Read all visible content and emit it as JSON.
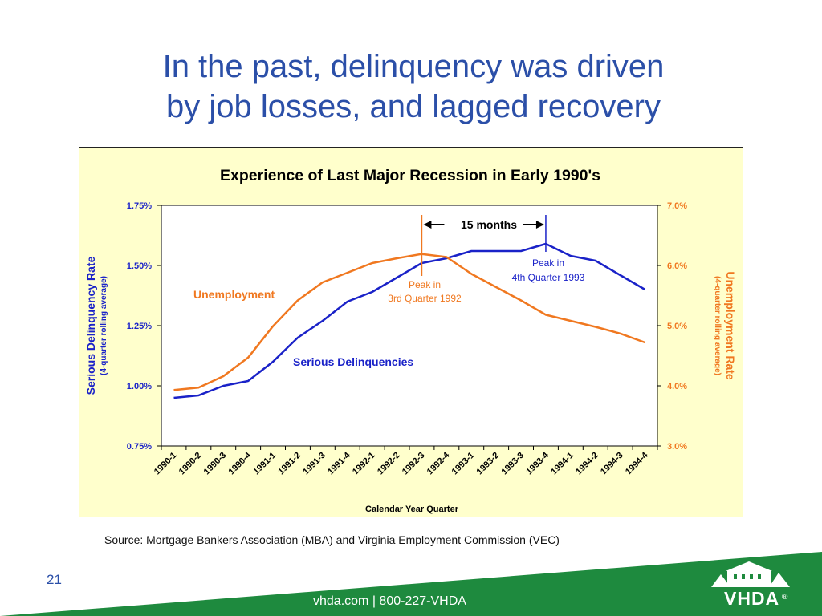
{
  "slide": {
    "title_line1": "In the past, delinquency was driven",
    "title_line2": "by job losses, and lagged recovery",
    "source": "Source: Mortgage Bankers Association (MBA) and Virginia Employment Commission (VEC)",
    "page_number": "21",
    "footer_contact": "vhda.com | 800-227-VHDA",
    "logo_text": "VHDA",
    "logo_mark": "®"
  },
  "colors": {
    "title": "#2b4fa8",
    "delinquency": "#1a22c8",
    "unemployment": "#f07820",
    "chart_background": "#ffffcc",
    "footer_green": "#1e8a3e"
  },
  "chart_data": {
    "type": "line",
    "title": "Experience of Last Major Recession in Early 1990's",
    "xlabel": "Calendar Year Quarter",
    "categories": [
      "1990-1",
      "1990-2",
      "1990-3",
      "1990-4",
      "1991-1",
      "1991-2",
      "1991-3",
      "1991-4",
      "1992-1",
      "1992-2",
      "1992-3",
      "1992-4",
      "1993-1",
      "1993-2",
      "1993-3",
      "1993-4",
      "1994-1",
      "1994-2",
      "1994-3",
      "1994-4"
    ],
    "y_left": {
      "label": "Serious Delinquency Rate",
      "sublabel": "(4-quarter rolling average)",
      "range": [
        0.75,
        1.75
      ],
      "ticks": [
        "0.75%",
        "1.00%",
        "1.25%",
        "1.50%",
        "1.75%"
      ]
    },
    "y_right": {
      "label": "Unemployment Rate",
      "sublabel": "(4-quarter rolling average)",
      "range": [
        3.0,
        7.0
      ],
      "ticks": [
        "3.0%",
        "4.0%",
        "5.0%",
        "6.0%",
        "7.0%"
      ]
    },
    "series": [
      {
        "name": "Serious Delinquencies",
        "axis": "left",
        "values": [
          0.95,
          0.96,
          1.0,
          1.02,
          1.1,
          1.2,
          1.27,
          1.35,
          1.39,
          1.45,
          1.51,
          1.53,
          1.56,
          1.56,
          1.56,
          1.59,
          1.54,
          1.52,
          1.46,
          1.4
        ]
      },
      {
        "name": "Unemployment",
        "axis": "right",
        "values": [
          3.93,
          3.97,
          4.16,
          4.47,
          4.99,
          5.42,
          5.72,
          5.88,
          6.04,
          6.12,
          6.19,
          6.14,
          5.86,
          5.64,
          5.42,
          5.18,
          5.08,
          4.98,
          4.87,
          4.72
        ]
      }
    ],
    "annotations": {
      "span_label": "15 months",
      "peak_unemp_line1": "Peak in",
      "peak_unemp_line2": "3rd Quarter 1992",
      "peak_delinq_line1": "Peak in",
      "peak_delinq_line2": "4th Quarter 1993",
      "peak_unemp_category": "1992-3",
      "peak_delinq_category": "1993-4"
    },
    "grid": false
  }
}
